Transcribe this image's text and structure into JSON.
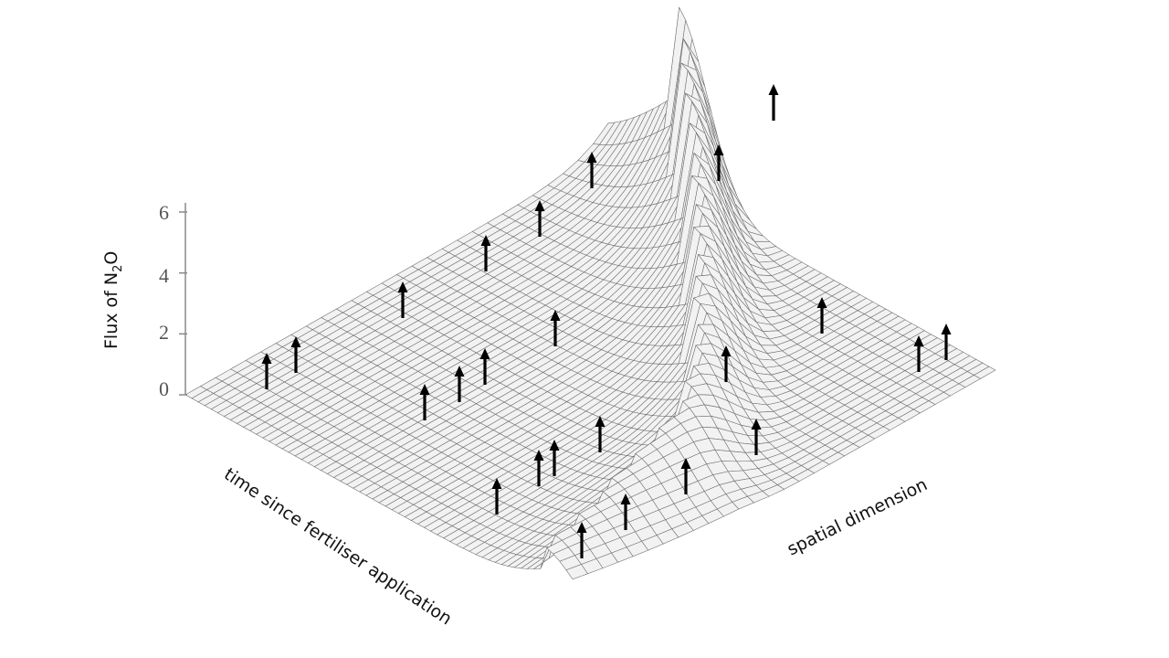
{
  "chart_data": {
    "type": "surface",
    "zlabel": {
      "main": "Flux of N",
      "sub": "2",
      "tail": "O"
    },
    "xlabel": "time since fertiliser application",
    "ylabel": "spatial dimension",
    "z_ticks": [
      "0",
      "2",
      "4",
      "6"
    ],
    "z_tick_values": [
      0,
      2,
      4,
      6
    ],
    "zlim": [
      0,
      6
    ],
    "peak": {
      "value": 6.2
    },
    "arrows_count": 26,
    "colors": {
      "mesh": "#6a6a6a",
      "fill": "#f2f2f2",
      "arrow": "#000000",
      "axis": "#888888"
    }
  }
}
